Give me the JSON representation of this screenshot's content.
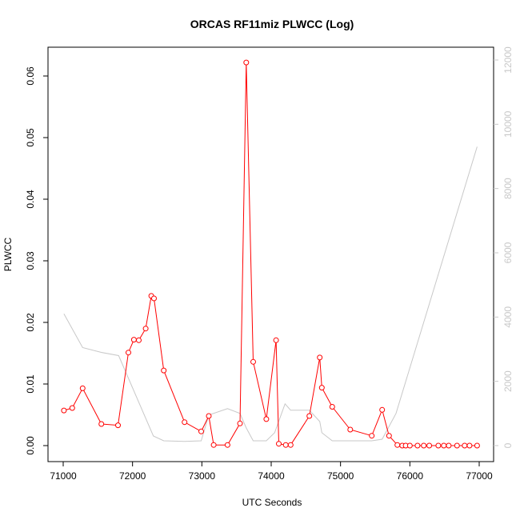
{
  "chart_data": {
    "type": "line",
    "title": "ORCAS RF11miz PLWCC (Log)",
    "xlabel": "UTC Seconds",
    "ylabel": "PLWCC",
    "xlim": [
      71000,
      77000
    ],
    "ylim": [
      0,
      0.06
    ],
    "y2lim": [
      0,
      12000
    ],
    "x_ticks": [
      "71000",
      "72000",
      "73000",
      "74000",
      "75000",
      "76000",
      "77000"
    ],
    "y_ticks": [
      "0.00",
      "0.01",
      "0.02",
      "0.03",
      "0.04",
      "0.05",
      "0.06"
    ],
    "y2_ticks": [
      "0",
      "2000",
      "4000",
      "6000",
      "8000",
      "10000",
      "12000"
    ],
    "grid": false,
    "series": [
      {
        "color": "#ff0000",
        "axis": "left",
        "markers": "open-circle",
        "points": [
          [
            71010,
            0.0057
          ],
          [
            71130,
            0.0061
          ],
          [
            71280,
            0.0093
          ],
          [
            71550,
            0.0035
          ],
          [
            71790,
            0.0033
          ],
          [
            71940,
            0.0151
          ],
          [
            72020,
            0.0172
          ],
          [
            72090,
            0.0171
          ],
          [
            72190,
            0.019
          ],
          [
            72270,
            0.0243
          ],
          [
            72310,
            0.0239
          ],
          [
            72450,
            0.0122
          ],
          [
            72750,
            0.0038
          ],
          [
            72990,
            0.0023
          ],
          [
            73100,
            0.0048
          ],
          [
            73170,
            0.0001
          ],
          [
            73370,
            0.0001
          ],
          [
            73550,
            0.0036
          ],
          [
            73640,
            0.0622
          ],
          [
            73740,
            0.0136
          ],
          [
            73930,
            0.0043
          ],
          [
            74070,
            0.0171
          ],
          [
            74110,
            0.0003
          ],
          [
            74210,
            0.0001
          ],
          [
            74280,
            0.0001
          ],
          [
            74550,
            0.0048
          ],
          [
            74700,
            0.0143
          ],
          [
            74730,
            0.0094
          ],
          [
            74880,
            0.0063
          ],
          [
            75140,
            0.0026
          ],
          [
            75450,
            0.0016
          ],
          [
            75600,
            0.0058
          ],
          [
            75700,
            0.0016
          ],
          [
            75820,
            0.0001
          ],
          [
            75890,
            0.0
          ],
          [
            75940,
            0.0
          ],
          [
            76000,
            0.0
          ],
          [
            76110,
            0.0
          ],
          [
            76200,
            0.0
          ],
          [
            76280,
            0.0
          ],
          [
            76410,
            0.0
          ],
          [
            76490,
            0.0
          ],
          [
            76560,
            0.0
          ],
          [
            76680,
            0.0
          ],
          [
            76790,
            0.0
          ],
          [
            76860,
            0.0
          ],
          [
            76970,
            0.0
          ]
        ]
      },
      {
        "color": "#c8c8c8",
        "axis": "right",
        "markers": "none",
        "points": [
          [
            71010,
            4100
          ],
          [
            71280,
            3050
          ],
          [
            71550,
            2900
          ],
          [
            71800,
            2800
          ],
          [
            72300,
            300
          ],
          [
            72450,
            150
          ],
          [
            72750,
            130
          ],
          [
            72990,
            150
          ],
          [
            73100,
            950
          ],
          [
            73370,
            1150
          ],
          [
            73550,
            1000
          ],
          [
            73640,
            550
          ],
          [
            73740,
            150
          ],
          [
            73930,
            150
          ],
          [
            74050,
            400
          ],
          [
            74200,
            1300
          ],
          [
            74280,
            1100
          ],
          [
            74550,
            1100
          ],
          [
            74700,
            750
          ],
          [
            74730,
            400
          ],
          [
            74880,
            150
          ],
          [
            75200,
            150
          ],
          [
            75450,
            150
          ],
          [
            75600,
            200
          ],
          [
            75800,
            1000
          ],
          [
            76970,
            9300
          ]
        ]
      }
    ]
  }
}
